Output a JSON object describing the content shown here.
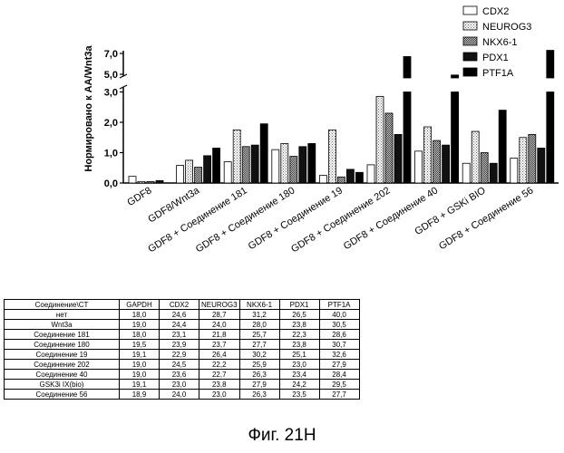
{
  "chart_data": {
    "type": "bar",
    "ylabel": "Нормировано к АА/Wnt3a",
    "y_ticks": [
      "0,0",
      "1,0",
      "2,0",
      "3,0",
      "5,0",
      "7,0"
    ],
    "y_scale": "broken axis: 0–3 linear, break, 5–7",
    "legend_position": "top-right",
    "categories": [
      "GDF8",
      "GDF8/Wnt3a",
      "GDF8 + Соединение 181",
      "GDF8 + Соединение 180",
      "GDF8 + Соединение 19",
      "GDF8 + Соединение 202",
      "GDF8 + Соединение 40",
      "GDF8 + GSKi BIO",
      "GDF8 + Соединение 56"
    ],
    "series": [
      {
        "name": "CDX2",
        "values": [
          0.22,
          0.58,
          0.7,
          1.1,
          0.25,
          0.6,
          1.05,
          0.65,
          0.82
        ],
        "fill": "#ffffff"
      },
      {
        "name": "NEUROG3",
        "values": [
          0.05,
          0.75,
          1.75,
          1.3,
          1.75,
          2.85,
          1.85,
          1.7,
          1.5
        ],
        "fill": "#ffffff"
      },
      {
        "name": "NKX6-1",
        "values": [
          0.05,
          0.52,
          1.2,
          0.88,
          0.2,
          2.3,
          1.4,
          1.0,
          1.6
        ],
        "fill": "#999999"
      },
      {
        "name": "PDX1",
        "values": [
          0.08,
          0.9,
          1.25,
          1.2,
          0.45,
          1.6,
          1.25,
          0.65,
          1.15
        ],
        "fill": "#111111"
      },
      {
        "name": "PTF1A",
        "values": [
          0.0,
          1.15,
          1.95,
          1.3,
          0.35,
          6.7,
          4.8,
          2.4,
          7.3
        ],
        "fill": "#000000"
      }
    ]
  },
  "table": {
    "headers": [
      "Соединение\\CT",
      "GAPDH",
      "CDX2",
      "NEUROG3",
      "NKX6-1",
      "PDX1",
      "PTF1A"
    ],
    "rows": [
      [
        "нет",
        "18,0",
        "24,6",
        "28,7",
        "31,2",
        "26,5",
        "40,0"
      ],
      [
        "Wnt3a",
        "19,0",
        "24,4",
        "24,0",
        "28,0",
        "23,8",
        "30,5"
      ],
      [
        "Соединение 181",
        "18,0",
        "23,1",
        "21,8",
        "25,7",
        "22,3",
        "28,6"
      ],
      [
        "Соединение 180",
        "19,5",
        "23,9",
        "23,7",
        "27,7",
        "23,8",
        "30,7"
      ],
      [
        "Соединение 19",
        "19,1",
        "22,9",
        "26,4",
        "30,2",
        "25,1",
        "32,6"
      ],
      [
        "Соединение 202",
        "19,0",
        "24,5",
        "22,2",
        "25,9",
        "23,0",
        "27,9"
      ],
      [
        "Соединение 40",
        "19,0",
        "23,6",
        "22,7",
        "26,3",
        "23,4",
        "28,4"
      ],
      [
        "GSK3i IX(bio)",
        "19,1",
        "23,0",
        "23,8",
        "27,9",
        "24,2",
        "29,5"
      ],
      [
        "Соединение 56",
        "18,9",
        "24,0",
        "23,0",
        "26,3",
        "23,5",
        "27,7"
      ]
    ]
  },
  "caption": "Фиг. 21H"
}
